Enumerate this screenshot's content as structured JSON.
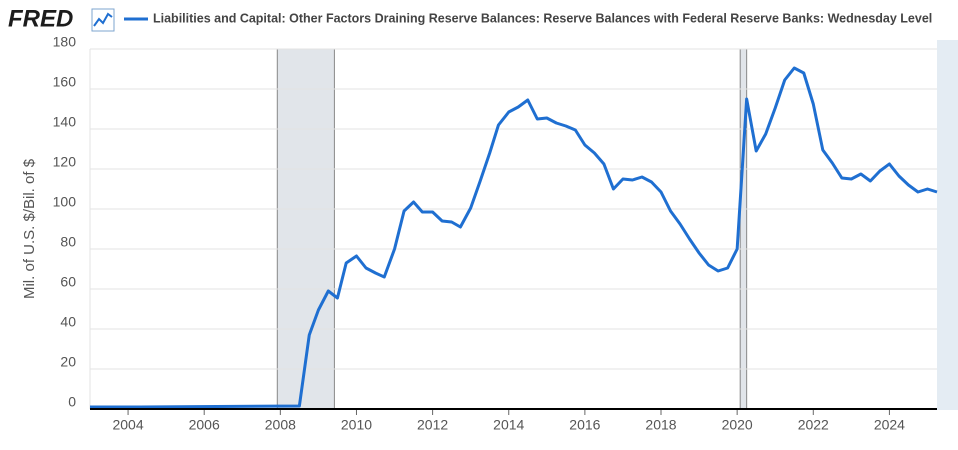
{
  "chart_data": {
    "type": "line",
    "logo": "FRED",
    "title": "Liabilities and Capital: Other Factors Draining Reserve Balances: Reserve Balances with Federal Reserve Banks: Wednesday Level",
    "ylabel": "Mil. of U.S. $/Bil. of $",
    "xlim": [
      2003,
      2025.25
    ],
    "xticks": [
      2004,
      2006,
      2008,
      2010,
      2012,
      2014,
      2016,
      2018,
      2020,
      2022,
      2024
    ],
    "ylim": [
      0,
      180
    ],
    "yticks": [
      0,
      20,
      40,
      60,
      80,
      100,
      120,
      140,
      160,
      180
    ],
    "grid": true,
    "recessions": [
      [
        2007.92,
        2009.42
      ],
      [
        2020.08,
        2020.25
      ]
    ],
    "series": [
      {
        "name": "Liabilities and Capital: Other Factors Draining Reserve Balances: Reserve Balances with Federal Reserve Banks: Wednesday Level",
        "color": "#1f6fd1",
        "x": [
          2003.0,
          2004.3,
          2008.5,
          2008.76,
          2009.0,
          2009.26,
          2009.5,
          2009.73,
          2010.0,
          2010.25,
          2010.5,
          2010.73,
          2011.0,
          2011.25,
          2011.5,
          2011.73,
          2012.0,
          2012.25,
          2012.5,
          2012.73,
          2013.0,
          2013.25,
          2013.5,
          2013.73,
          2014.0,
          2014.25,
          2014.5,
          2014.75,
          2015.0,
          2015.25,
          2015.5,
          2015.75,
          2016.0,
          2016.25,
          2016.5,
          2016.75,
          2017.0,
          2017.25,
          2017.5,
          2017.75,
          2018.0,
          2018.25,
          2018.5,
          2018.75,
          2019.0,
          2019.25,
          2019.5,
          2019.75,
          2020.0,
          2020.25,
          2020.5,
          2020.75,
          2021.0,
          2021.25,
          2021.5,
          2021.75,
          2022.0,
          2022.25,
          2022.5,
          2022.75,
          2023.0,
          2023.25,
          2023.5,
          2023.75,
          2024.0,
          2024.25,
          2024.5,
          2024.75,
          2025.0,
          2025.25
        ],
        "values": [
          1,
          1,
          1.5,
          37,
          49.5,
          59,
          55.5,
          73,
          76.5,
          70.5,
          68,
          66,
          80,
          99,
          103.5,
          98.5,
          98.5,
          94,
          93.5,
          91,
          100.5,
          114,
          128,
          142,
          148.5,
          151,
          154.5,
          145,
          145.5,
          143,
          141.5,
          139.5,
          132,
          128,
          122.5,
          110,
          115,
          114.5,
          116,
          113.5,
          108.5,
          99,
          92.5,
          85,
          78,
          72,
          69,
          70.5,
          80,
          155,
          129,
          137.5,
          150.5,
          164.5,
          170.5,
          168,
          152.5,
          129.5,
          123,
          115.5,
          115,
          117.5,
          114,
          119,
          122.5,
          116.5,
          112,
          108.5,
          110,
          108.5
        ]
      }
    ]
  }
}
